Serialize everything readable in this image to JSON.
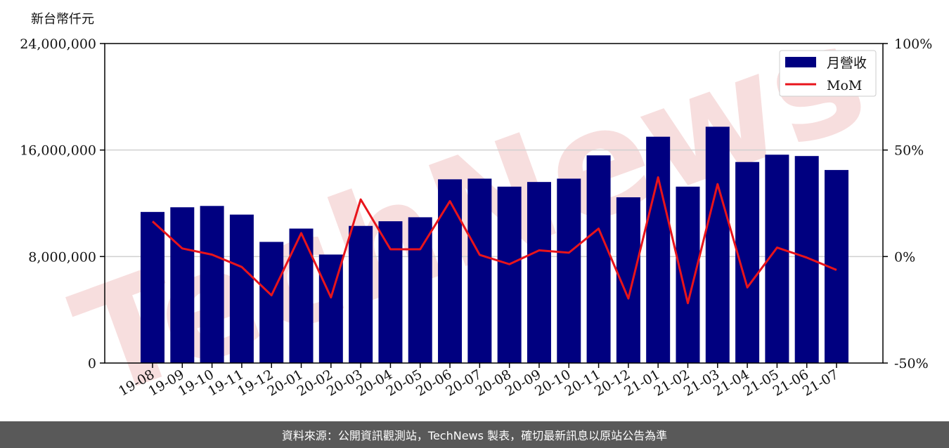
{
  "colors": {
    "bar": "#000080",
    "line": "#e8141b",
    "grid": "#d0d0d0",
    "footer_bg": "#595959",
    "watermark": "#f2c4c4"
  },
  "footer": {
    "text": "資料來源：公開資訊觀測站，TechNews 製表，確切最新訊息以原站公告為準"
  },
  "chart_data": {
    "type": "bar",
    "title": "",
    "ylabel": "新台幣仟元",
    "ylabel_right": "",
    "ylim": [
      0,
      24000000
    ],
    "y_ticks": [
      0,
      8000000,
      16000000,
      24000000
    ],
    "y_tick_labels": [
      "0",
      "8,000,000",
      "16,000,000",
      "24,000,000"
    ],
    "y2lim": [
      -50,
      100
    ],
    "y2_ticks": [
      -50,
      0,
      50,
      100
    ],
    "y2_tick_labels": [
      "-50%",
      "0%",
      "50%",
      "100%"
    ],
    "grid": "horizontal",
    "legend_position": "top-right",
    "watermark": "TechNews",
    "categories": [
      "19-08",
      "19-09",
      "19-10",
      "19-11",
      "19-12",
      "20-01",
      "20-02",
      "20-03",
      "20-04",
      "20-05",
      "20-06",
      "20-07",
      "20-08",
      "20-09",
      "20-10",
      "20-11",
      "20-12",
      "21-01",
      "21-02",
      "21-03",
      "21-04",
      "21-05",
      "21-06",
      "21-07"
    ],
    "series": [
      {
        "name": "月營收",
        "type": "bar",
        "axis": "left",
        "values": [
          11350000,
          11700000,
          11800000,
          11150000,
          9100000,
          10100000,
          8150000,
          10300000,
          10650000,
          10950000,
          13800000,
          13850000,
          13250000,
          13600000,
          13850000,
          15600000,
          12450000,
          17000000,
          13250000,
          17750000,
          15100000,
          15650000,
          15550000,
          14500000
        ]
      },
      {
        "name": "MoM",
        "type": "line",
        "axis": "right",
        "values": [
          16.5,
          3.8,
          0.9,
          -4.9,
          -18.2,
          11.0,
          -19.2,
          26.8,
          3.4,
          3.4,
          26.0,
          0.8,
          -3.6,
          2.9,
          1.8,
          13.1,
          -19.7,
          37.2,
          -21.9,
          34.0,
          -14.5,
          4.2,
          -0.5,
          -6.3
        ]
      }
    ]
  }
}
